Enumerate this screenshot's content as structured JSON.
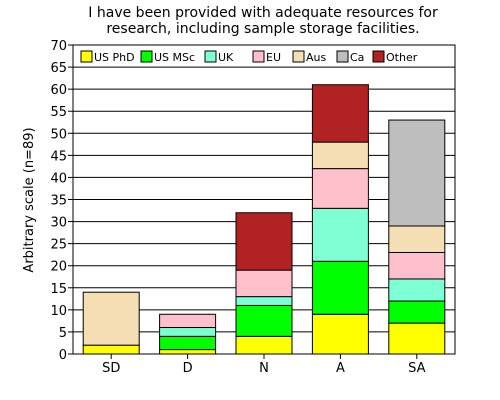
{
  "chart_data": {
    "type": "bar",
    "stacked": true,
    "title": [
      "I have been provided with adequate resources for",
      "research, including sample storage facilities."
    ],
    "xlabel": "",
    "ylabel": "Arbitrary scale (n=89)",
    "ylim": [
      0,
      70
    ],
    "ytick_step": 5,
    "grid": true,
    "legend_position": "top",
    "categories": [
      "SD",
      "D",
      "N",
      "A",
      "SA"
    ],
    "series": [
      {
        "name": "US PhD",
        "color": "#ffff00",
        "values": [
          2,
          1,
          4,
          9,
          7
        ]
      },
      {
        "name": "US MSc",
        "color": "#00ff00",
        "values": [
          0,
          3,
          7,
          12,
          5
        ]
      },
      {
        "name": "UK",
        "color": "#7fffd4",
        "values": [
          0,
          2,
          2,
          12,
          5
        ]
      },
      {
        "name": "EU",
        "color": "#ffc0cb",
        "values": [
          0,
          3,
          6,
          9,
          6
        ]
      },
      {
        "name": "Aus",
        "color": "#f5deb3",
        "values": [
          12,
          0,
          0,
          6,
          6
        ]
      },
      {
        "name": "Ca",
        "color": "#bebebe",
        "values": [
          0,
          0,
          0,
          0,
          24
        ]
      },
      {
        "name": "Other",
        "color": "#b22222",
        "values": [
          0,
          0,
          13,
          13,
          0
        ]
      }
    ]
  }
}
